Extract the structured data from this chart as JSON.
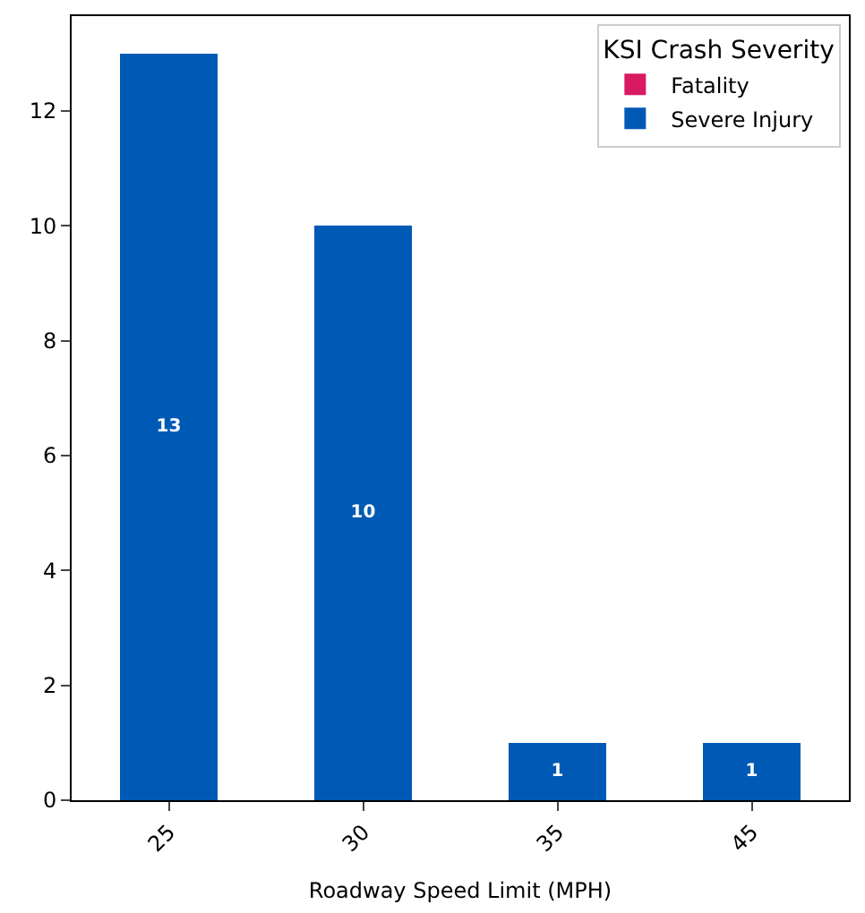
{
  "chart_data": {
    "type": "bar",
    "stacked": true,
    "xlabel": "Roadway Speed Limit (MPH)",
    "legend_title": "KSI Crash Severity",
    "legend": "top right",
    "categories": [
      "25",
      "30",
      "35",
      "45"
    ],
    "series": [
      {
        "name": "Fatality",
        "color": "#d81b60",
        "values": [
          0,
          0,
          0,
          0
        ]
      },
      {
        "name": "Severe Injury",
        "color": "#005ab5",
        "values": [
          13,
          10,
          1,
          1
        ],
        "value_labels": [
          "13",
          "10",
          "1",
          "1"
        ]
      }
    ],
    "ylim": [
      0,
      13.65
    ],
    "yticks": [
      0,
      2,
      4,
      6,
      8,
      10,
      12
    ]
  }
}
